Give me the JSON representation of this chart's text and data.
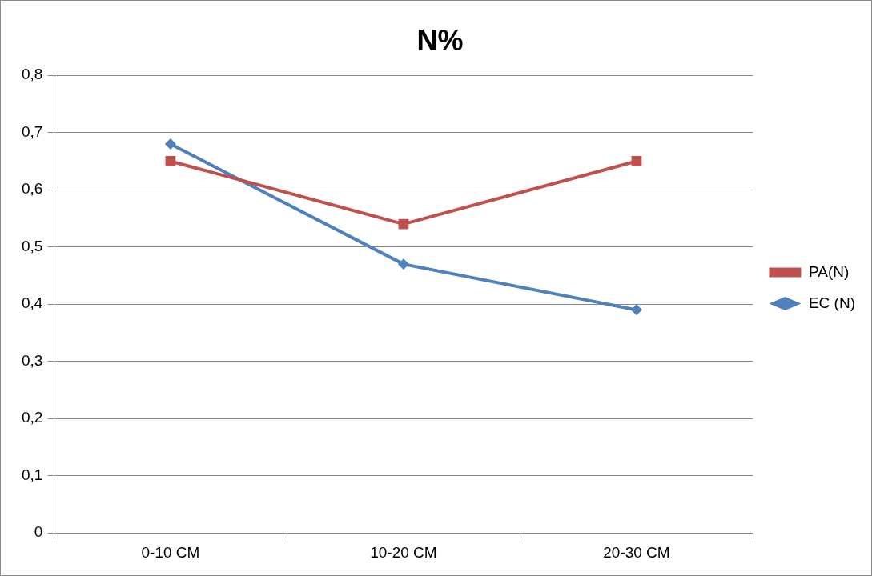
{
  "chart_data": {
    "type": "line",
    "title": "N%",
    "categories": [
      "0-10 CM",
      "10-20 CM",
      "20-30 CM"
    ],
    "series": [
      {
        "name": "PA(N)",
        "color": "#c0504d",
        "values": [
          0.65,
          0.54,
          0.65
        ],
        "marker": "square"
      },
      {
        "name": "EC (N)",
        "color": "#4f81bd",
        "values": [
          0.68,
          0.47,
          0.39
        ],
        "marker": "diamond"
      }
    ],
    "ylim": [
      0,
      0.8
    ],
    "yticks": [
      {
        "value": 0,
        "label": "0"
      },
      {
        "value": 0.1,
        "label": "0,1"
      },
      {
        "value": 0.2,
        "label": "0,2"
      },
      {
        "value": 0.3,
        "label": "0,3"
      },
      {
        "value": 0.4,
        "label": "0,4"
      },
      {
        "value": 0.5,
        "label": "0,5"
      },
      {
        "value": 0.6,
        "label": "0,6"
      },
      {
        "value": 0.7,
        "label": "0,7"
      },
      {
        "value": 0.8,
        "label": "0,8"
      }
    ],
    "grid": "y",
    "legend": "right",
    "line_style": "solid"
  }
}
